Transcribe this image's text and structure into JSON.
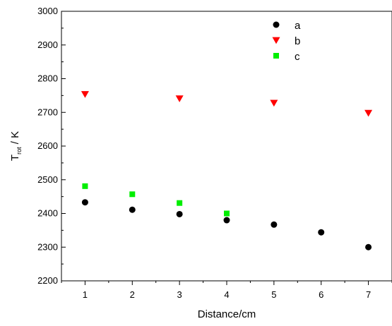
{
  "chart_data": {
    "type": "scatter",
    "title": "",
    "xlabel": "Distance/cm",
    "ylabel": {
      "main": "T",
      "sub": "rot",
      "unit": " / K"
    },
    "xlim": [
      0.5,
      7.5
    ],
    "ylim": [
      2200,
      3000
    ],
    "xticks": [
      1,
      2,
      3,
      4,
      5,
      6,
      7
    ],
    "yticks": [
      2200,
      2300,
      2400,
      2500,
      2600,
      2700,
      2800,
      2900,
      3000
    ],
    "grid": false,
    "legend_position": "top-right",
    "series": [
      {
        "name": "a",
        "marker": "circle",
        "color": "#000000",
        "points": [
          [
            1,
            2433
          ],
          [
            2,
            2411
          ],
          [
            3,
            2398
          ],
          [
            4,
            2380
          ],
          [
            5,
            2367
          ],
          [
            6,
            2344
          ],
          [
            7,
            2300
          ]
        ]
      },
      {
        "name": "b",
        "marker": "triangle-down",
        "color": "#ff0000",
        "points": [
          [
            1,
            2754
          ],
          [
            3,
            2741
          ],
          [
            5,
            2728
          ],
          [
            7,
            2698
          ]
        ]
      },
      {
        "name": "c",
        "marker": "square",
        "color": "#00ee00",
        "points": [
          [
            1,
            2481
          ],
          [
            2,
            2457
          ],
          [
            3,
            2431
          ],
          [
            4,
            2400
          ]
        ]
      }
    ]
  }
}
